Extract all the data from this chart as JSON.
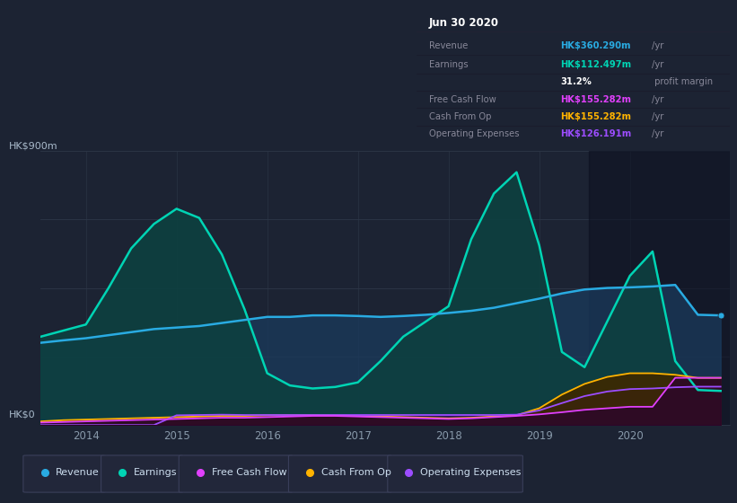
{
  "bg_color": "#1c2333",
  "plot_bg_color": "#1c2333",
  "grid_color": "#2d3748",
  "title_box_bg": "#060810",
  "title_box_border": "#2a2a3a",
  "ylabel": "HK$900m",
  "y0label": "HK$0",
  "xlim": [
    2013.5,
    2021.1
  ],
  "ylim": [
    0,
    900
  ],
  "xticks": [
    2014,
    2015,
    2016,
    2017,
    2018,
    2019,
    2020
  ],
  "highlight_x_start": 2019.55,
  "series": {
    "revenue": {
      "color": "#29abe2",
      "fill_alpha": 0.35,
      "label": "Revenue",
      "x": [
        2013.5,
        2013.75,
        2014.0,
        2014.25,
        2014.5,
        2014.75,
        2015.0,
        2015.25,
        2015.5,
        2015.75,
        2016.0,
        2016.25,
        2016.5,
        2016.75,
        2017.0,
        2017.25,
        2017.5,
        2017.75,
        2018.0,
        2018.25,
        2018.5,
        2018.75,
        2019.0,
        2019.25,
        2019.5,
        2019.75,
        2020.0,
        2020.25,
        2020.5,
        2020.75,
        2021.0
      ],
      "y": [
        270,
        278,
        285,
        295,
        305,
        315,
        320,
        325,
        335,
        345,
        355,
        355,
        360,
        360,
        358,
        355,
        358,
        362,
        368,
        375,
        385,
        400,
        415,
        432,
        445,
        450,
        452,
        455,
        460,
        362,
        360
      ]
    },
    "earnings": {
      "color": "#00d4b4",
      "fill_color": "#0d4040",
      "fill_alpha": 0.9,
      "label": "Earnings",
      "x": [
        2013.5,
        2013.75,
        2014.0,
        2014.25,
        2014.5,
        2014.75,
        2015.0,
        2015.25,
        2015.5,
        2015.75,
        2016.0,
        2016.25,
        2016.5,
        2016.75,
        2017.0,
        2017.25,
        2017.5,
        2017.75,
        2018.0,
        2018.25,
        2018.5,
        2018.75,
        2019.0,
        2019.25,
        2019.5,
        2019.75,
        2020.0,
        2020.25,
        2020.5,
        2020.75,
        2021.0
      ],
      "y": [
        290,
        310,
        330,
        450,
        580,
        660,
        710,
        680,
        560,
        380,
        170,
        130,
        120,
        125,
        140,
        210,
        290,
        340,
        390,
        610,
        760,
        830,
        590,
        240,
        190,
        340,
        490,
        570,
        210,
        115,
        112
      ]
    },
    "free_cash_flow": {
      "color": "#e040fb",
      "fill_color": "#3a0040",
      "fill_alpha": 0.5,
      "label": "Free Cash Flow",
      "x": [
        2013.5,
        2013.75,
        2014.0,
        2014.25,
        2014.5,
        2014.75,
        2015.0,
        2015.25,
        2015.5,
        2015.75,
        2016.0,
        2016.25,
        2016.5,
        2016.75,
        2017.0,
        2017.25,
        2017.5,
        2017.75,
        2018.0,
        2018.25,
        2018.5,
        2018.75,
        2019.0,
        2019.25,
        2019.5,
        2019.75,
        2020.0,
        2020.25,
        2020.5,
        2020.75,
        2021.0
      ],
      "y": [
        8,
        10,
        12,
        14,
        16,
        18,
        20,
        22,
        24,
        24,
        26,
        28,
        30,
        30,
        28,
        26,
        24,
        22,
        20,
        22,
        26,
        30,
        35,
        42,
        50,
        55,
        60,
        60,
        155,
        155,
        155
      ]
    },
    "cash_from_op": {
      "color": "#ffb300",
      "fill_color": "#3a2800",
      "fill_alpha": 0.8,
      "label": "Cash From Op",
      "x": [
        2013.5,
        2013.75,
        2014.0,
        2014.25,
        2014.5,
        2014.75,
        2015.0,
        2015.25,
        2015.5,
        2015.75,
        2016.0,
        2016.25,
        2016.5,
        2016.75,
        2017.0,
        2017.25,
        2017.5,
        2017.75,
        2018.0,
        2018.25,
        2018.5,
        2018.75,
        2019.0,
        2019.25,
        2019.5,
        2019.75,
        2020.0,
        2020.25,
        2020.5,
        2020.75,
        2021.0
      ],
      "y": [
        12,
        16,
        18,
        20,
        22,
        24,
        26,
        28,
        30,
        30,
        32,
        33,
        33,
        32,
        30,
        28,
        26,
        24,
        22,
        24,
        28,
        32,
        55,
        100,
        135,
        158,
        170,
        170,
        165,
        155,
        155
      ]
    },
    "operating_expenses": {
      "color": "#9c4dff",
      "fill_color": "#1a0040",
      "fill_alpha": 0.9,
      "label": "Operating Expenses",
      "x": [
        2013.5,
        2013.75,
        2014.0,
        2014.25,
        2014.5,
        2014.75,
        2015.0,
        2015.25,
        2015.5,
        2015.75,
        2016.0,
        2016.25,
        2016.5,
        2016.75,
        2017.0,
        2017.25,
        2017.5,
        2017.75,
        2018.0,
        2018.25,
        2018.5,
        2018.75,
        2019.0,
        2019.25,
        2019.5,
        2019.75,
        2020.0,
        2020.25,
        2020.5,
        2020.75,
        2021.0
      ],
      "y": [
        0,
        0,
        0,
        0,
        0,
        0,
        32,
        33,
        34,
        33,
        33,
        33,
        33,
        33,
        33,
        33,
        33,
        33,
        33,
        33,
        33,
        34,
        48,
        72,
        95,
        110,
        118,
        120,
        124,
        126,
        126
      ]
    }
  },
  "title_box": {
    "date": "Jun 30 2020",
    "rows": [
      {
        "label": "Revenue",
        "value": "HK$360.290m",
        "unit": "/yr",
        "value_color": "#29abe2"
      },
      {
        "label": "Earnings",
        "value": "HK$112.497m",
        "unit": "/yr",
        "value_color": "#00d4b4"
      },
      {
        "label": "",
        "value": "31.2%",
        "unit": " profit margin",
        "value_color": "#ffffff"
      },
      {
        "label": "Free Cash Flow",
        "value": "HK$155.282m",
        "unit": "/yr",
        "value_color": "#e040fb"
      },
      {
        "label": "Cash From Op",
        "value": "HK$155.282m",
        "unit": "/yr",
        "value_color": "#ffb300"
      },
      {
        "label": "Operating Expenses",
        "value": "HK$126.191m",
        "unit": "/yr",
        "value_color": "#9c4dff"
      }
    ]
  },
  "legend": [
    {
      "label": "Revenue",
      "color": "#29abe2"
    },
    {
      "label": "Earnings",
      "color": "#00d4b4"
    },
    {
      "label": "Free Cash Flow",
      "color": "#e040fb"
    },
    {
      "label": "Cash From Op",
      "color": "#ffb300"
    },
    {
      "label": "Operating Expenses",
      "color": "#9c4dff"
    }
  ]
}
